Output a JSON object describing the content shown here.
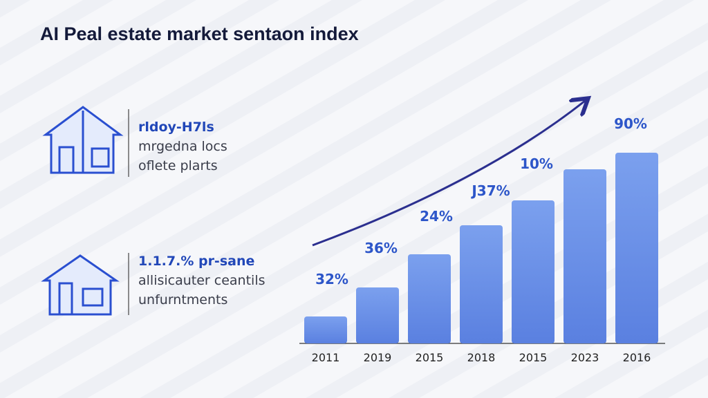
{
  "header": {
    "title": "AI Peal estate market sentaon index"
  },
  "items": [
    {
      "heading": "rldoy-H7ls",
      "lines": [
        "mrgedna locs",
        "oflete plarts"
      ]
    },
    {
      "heading": "1.1.7.% pr-sane",
      "lines": [
        "allisicauter ceantils",
        "unfurntments"
      ]
    }
  ],
  "chart_data": {
    "type": "bar",
    "categories": [
      "2011",
      "2019",
      "2015",
      "2018",
      "2015",
      "2023",
      "2016"
    ],
    "values": [
      13,
      27,
      43,
      57,
      69,
      84,
      92
    ],
    "color": "#6a90e8",
    "ylim": [
      0,
      100
    ],
    "annotations": [
      "32%",
      "36%",
      "24%",
      "J37%",
      "10%",
      "90%"
    ]
  }
}
